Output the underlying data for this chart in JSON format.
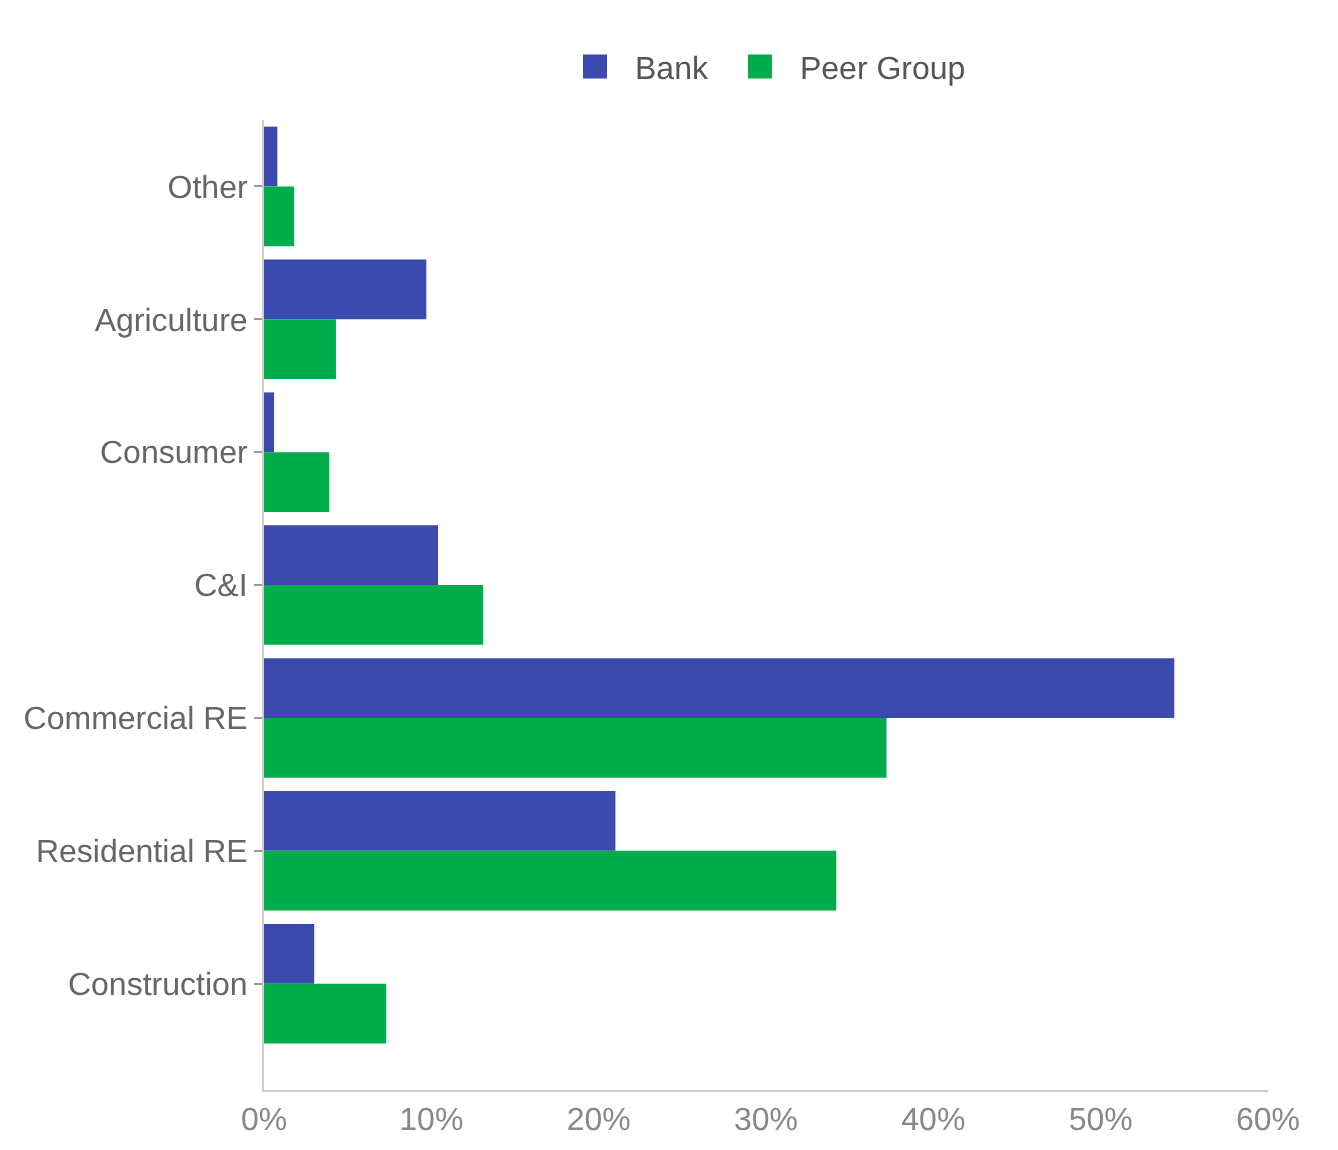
{
  "chart_data": {
    "type": "bar",
    "orientation": "horizontal",
    "categories": [
      "Other",
      "Agriculture",
      "Consumer",
      "C&I",
      "Commercial RE",
      "Residential RE",
      "Construction"
    ],
    "series": [
      {
        "name": "Bank",
        "color": "#3a4aad",
        "values": [
          0.8,
          9.7,
          0.6,
          10.4,
          54.4,
          21.0,
          3.0
        ]
      },
      {
        "name": "Peer Group",
        "color": "#00ac4c",
        "values": [
          1.8,
          4.3,
          3.9,
          13.1,
          37.2,
          34.2,
          7.3
        ]
      }
    ],
    "xlim": [
      0,
      60
    ],
    "xticks": [
      {
        "value": 0,
        "label": "0%"
      },
      {
        "value": 10,
        "label": "10%"
      },
      {
        "value": 20,
        "label": "20%"
      },
      {
        "value": 30,
        "label": "30%"
      },
      {
        "value": 40,
        "label": "40%"
      },
      {
        "value": 50,
        "label": "50%"
      },
      {
        "value": 60,
        "label": "60%"
      }
    ],
    "grid": false,
    "legend": "top"
  }
}
